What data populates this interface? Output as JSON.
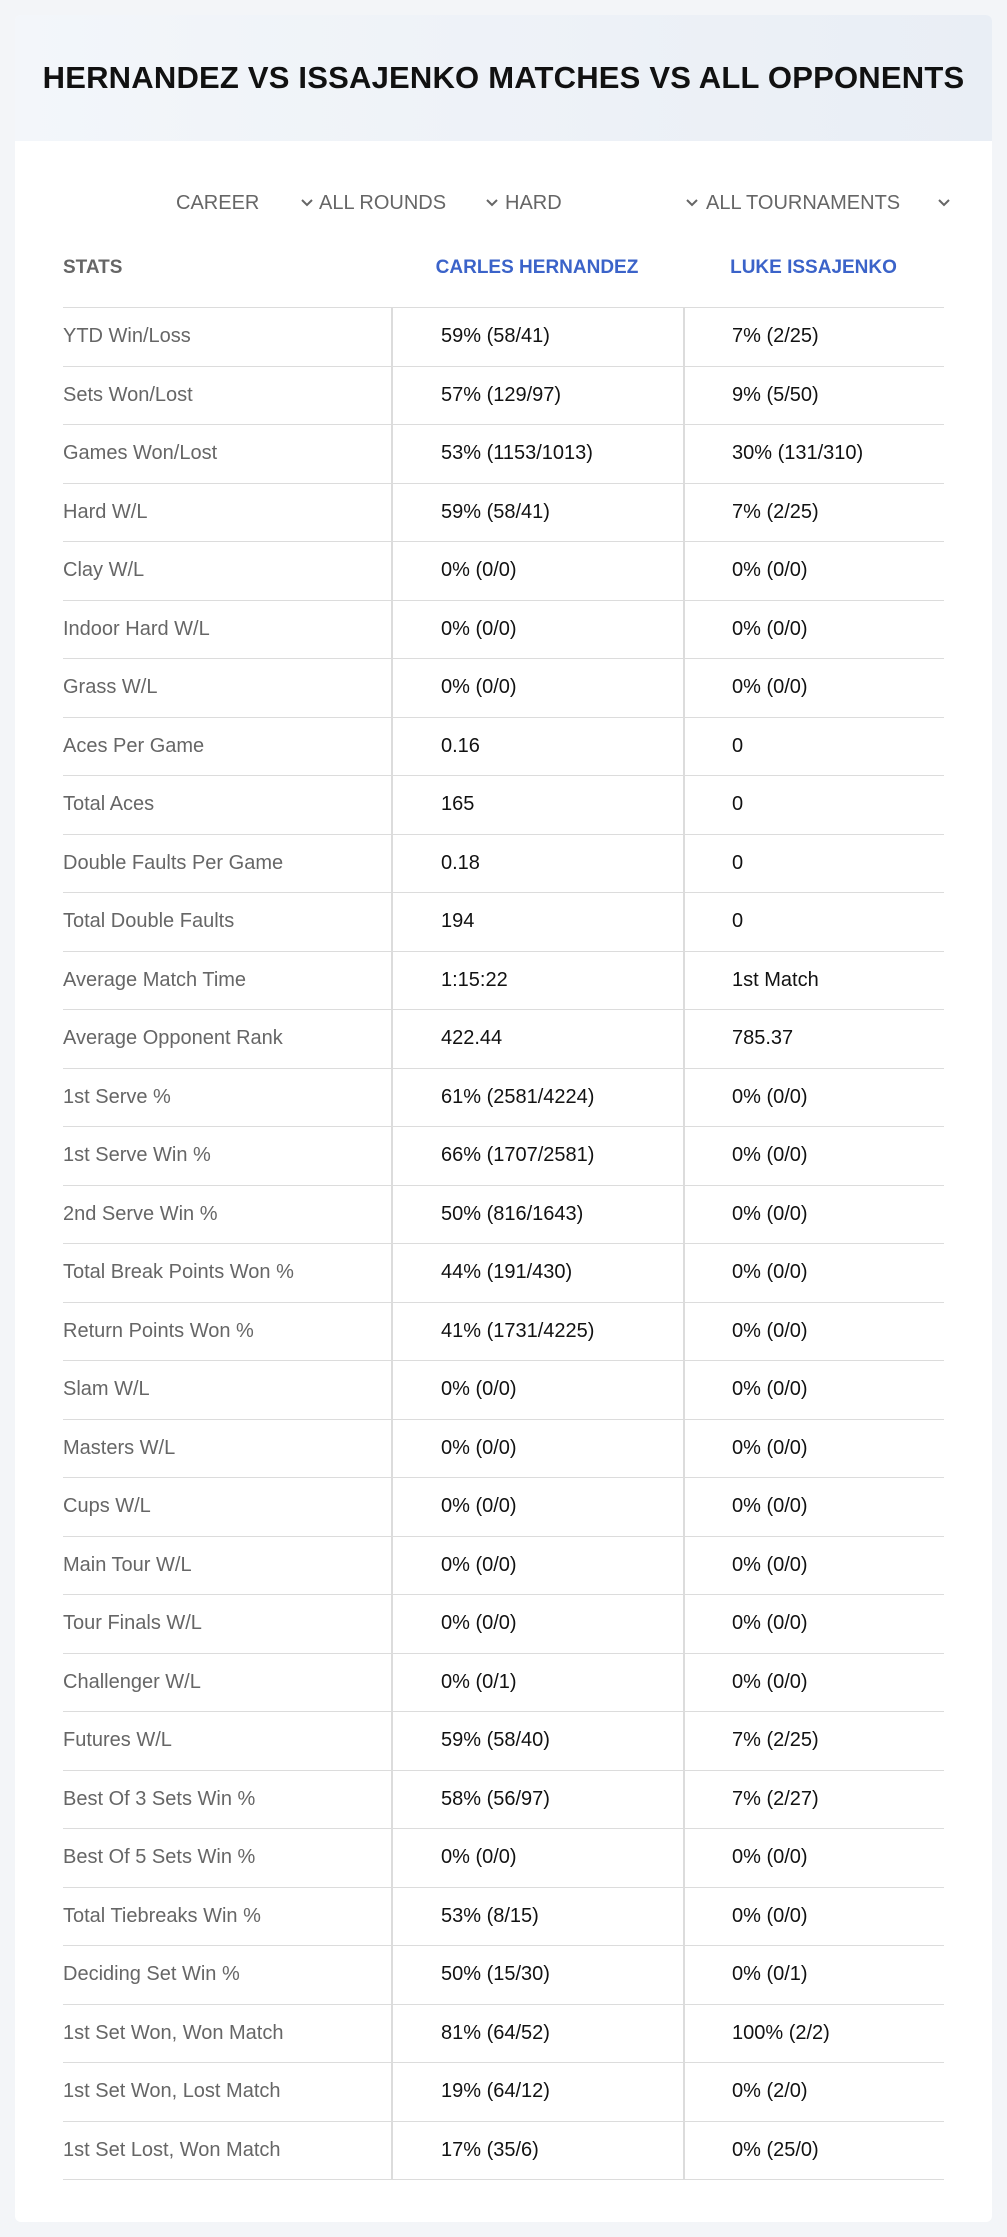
{
  "header": {
    "title": "HERNANDEZ VS ISSAJENKO MATCHES VS ALL OPPONENTS"
  },
  "filters": {
    "period": "CAREER",
    "round": "ALL ROUNDS",
    "surface": "HARD",
    "tournament": "ALL TOURNAMENTS"
  },
  "table": {
    "headers": {
      "stats": "STATS",
      "player1": "CARLES HERNANDEZ",
      "player2": "LUKE ISSAJENKO"
    },
    "rows": [
      {
        "label": "YTD Win/Loss",
        "p1": "59% (58/41)",
        "p2": "7% (2/25)"
      },
      {
        "label": "Sets Won/Lost",
        "p1": "57% (129/97)",
        "p2": "9% (5/50)"
      },
      {
        "label": "Games Won/Lost",
        "p1": "53% (1153/1013)",
        "p2": "30% (131/310)"
      },
      {
        "label": "Hard W/L",
        "p1": "59% (58/41)",
        "p2": "7% (2/25)"
      },
      {
        "label": "Clay W/L",
        "p1": "0% (0/0)",
        "p2": "0% (0/0)"
      },
      {
        "label": "Indoor Hard W/L",
        "p1": "0% (0/0)",
        "p2": "0% (0/0)"
      },
      {
        "label": "Grass W/L",
        "p1": "0% (0/0)",
        "p2": "0% (0/0)"
      },
      {
        "label": "Aces Per Game",
        "p1": "0.16",
        "p2": "0"
      },
      {
        "label": "Total Aces",
        "p1": "165",
        "p2": "0"
      },
      {
        "label": "Double Faults Per Game",
        "p1": "0.18",
        "p2": "0"
      },
      {
        "label": "Total Double Faults",
        "p1": "194",
        "p2": "0"
      },
      {
        "label": "Average Match Time",
        "p1": "1:15:22",
        "p2": "1st Match"
      },
      {
        "label": "Average Opponent Rank",
        "p1": "422.44",
        "p2": "785.37"
      },
      {
        "label": "1st Serve %",
        "p1": "61% (2581/4224)",
        "p2": "0% (0/0)"
      },
      {
        "label": "1st Serve Win %",
        "p1": "66% (1707/2581)",
        "p2": "0% (0/0)"
      },
      {
        "label": "2nd Serve Win %",
        "p1": "50% (816/1643)",
        "p2": "0% (0/0)"
      },
      {
        "label": "Total Break Points Won %",
        "p1": "44% (191/430)",
        "p2": "0% (0/0)"
      },
      {
        "label": "Return Points Won %",
        "p1": "41% (1731/4225)",
        "p2": "0% (0/0)"
      },
      {
        "label": "Slam W/L",
        "p1": "0% (0/0)",
        "p2": "0% (0/0)"
      },
      {
        "label": "Masters W/L",
        "p1": "0% (0/0)",
        "p2": "0% (0/0)"
      },
      {
        "label": "Cups W/L",
        "p1": "0% (0/0)",
        "p2": "0% (0/0)"
      },
      {
        "label": "Main Tour W/L",
        "p1": "0% (0/0)",
        "p2": "0% (0/0)"
      },
      {
        "label": "Tour Finals W/L",
        "p1": "0% (0/0)",
        "p2": "0% (0/0)"
      },
      {
        "label": "Challenger W/L",
        "p1": "0% (0/1)",
        "p2": "0% (0/0)"
      },
      {
        "label": "Futures W/L",
        "p1": "59% (58/40)",
        "p2": "7% (2/25)"
      },
      {
        "label": "Best Of 3 Sets Win %",
        "p1": "58% (56/97)",
        "p2": "7% (2/27)"
      },
      {
        "label": "Best Of 5 Sets Win %",
        "p1": "0% (0/0)",
        "p2": "0% (0/0)"
      },
      {
        "label": "Total Tiebreaks Win %",
        "p1": "53% (8/15)",
        "p2": "0% (0/0)"
      },
      {
        "label": "Deciding Set Win %",
        "p1": "50% (15/30)",
        "p2": "0% (0/1)"
      },
      {
        "label": "1st Set Won, Won Match",
        "p1": "81% (64/52)",
        "p2": "100% (2/2)"
      },
      {
        "label": "1st Set Won, Lost Match",
        "p1": "19% (64/12)",
        "p2": "0% (2/0)"
      },
      {
        "label": "1st Set Lost, Won Match",
        "p1": "17% (35/6)",
        "p2": "0% (25/0)"
      }
    ]
  },
  "icons": {
    "dropdown": "chevron-down-icon"
  },
  "colors": {
    "accent": "#3b63c9",
    "label": "#666666",
    "value": "#111111"
  }
}
